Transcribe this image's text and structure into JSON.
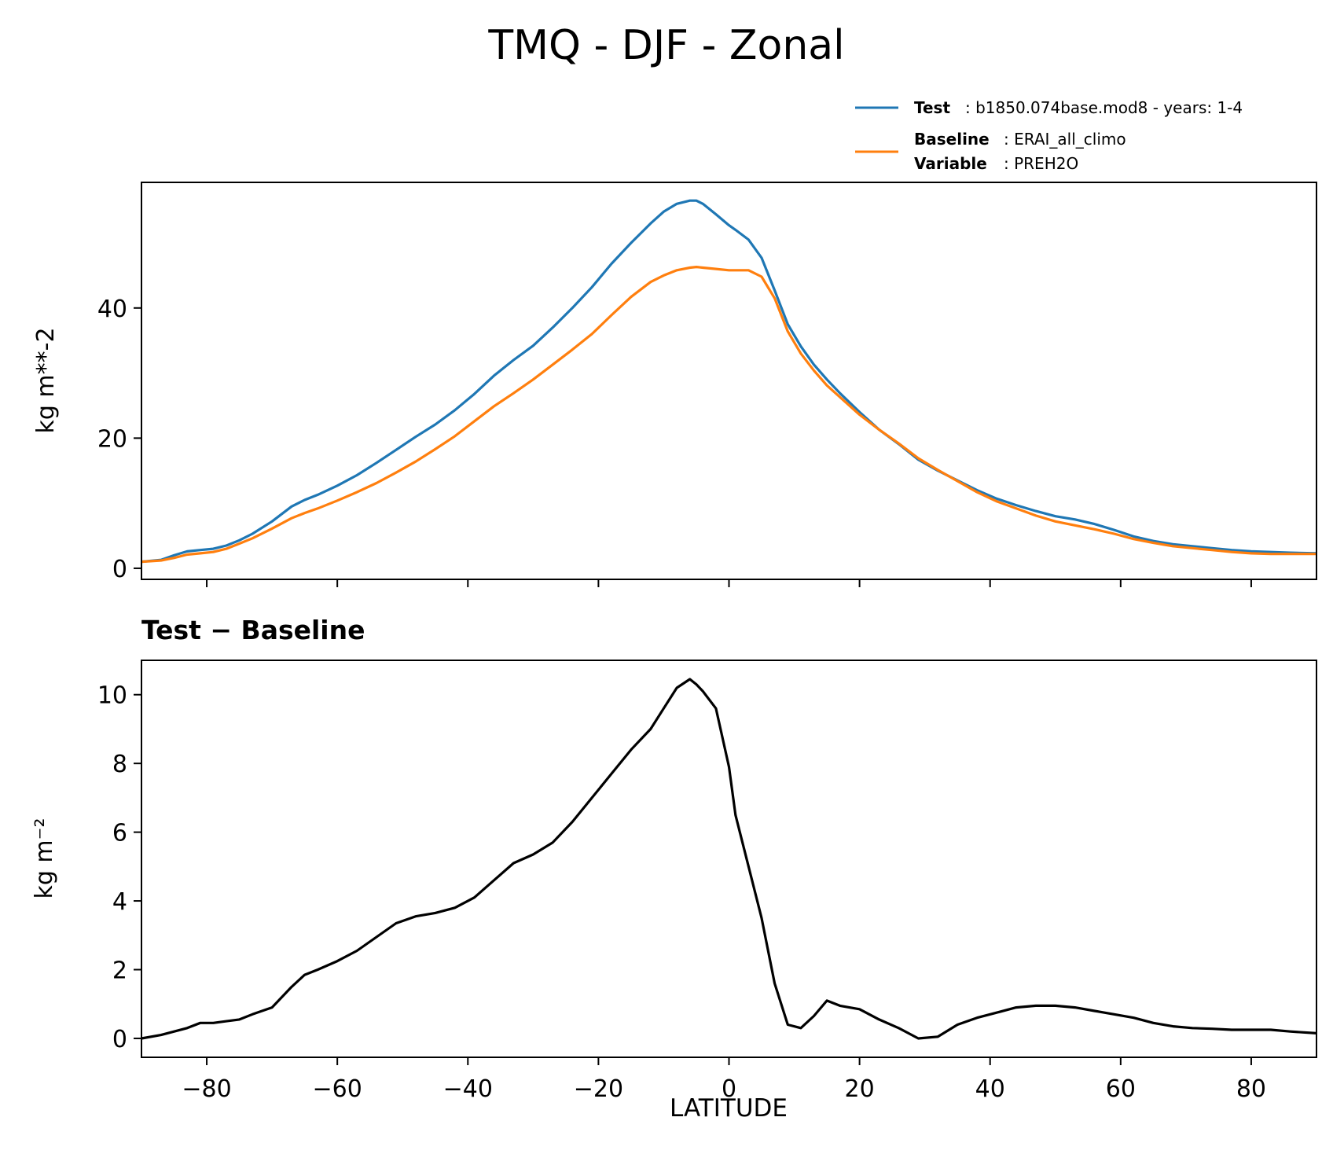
{
  "title": "TMQ - DJF - Zonal",
  "legend": {
    "test_key": "Test",
    "test_value": ": b1850.074base.mod8 - years: 1-4",
    "baseline_key": "Baseline",
    "baseline_value": ": ERAI_all_climo",
    "variable_key": "Variable",
    "variable_value": ": PREH2O"
  },
  "colors": {
    "test": "#1f77b4",
    "baseline": "#ff7f0e",
    "diff": "#000000"
  },
  "chart_data": [
    {
      "type": "line",
      "panel": "top",
      "ylabel": "kg m**-2",
      "xlim": [
        -90,
        90
      ],
      "ylim": [
        -1.7,
        59.3
      ],
      "yticks": [
        0,
        20,
        40
      ],
      "xticks": [
        -80,
        -60,
        -40,
        -20,
        0,
        20,
        40,
        60,
        80
      ],
      "legend_position": "above right",
      "series": [
        {
          "name": "Test",
          "x": [
            -90,
            -87,
            -85,
            -83,
            -81,
            -79,
            -77,
            -75,
            -73,
            -70,
            -67,
            -65,
            -63,
            -60,
            -57,
            -54,
            -51,
            -48,
            -45,
            -42,
            -39,
            -36,
            -33,
            -30,
            -27,
            -24,
            -21,
            -18,
            -15,
            -12,
            -10,
            -8,
            -6,
            -5,
            -4,
            -2,
            0,
            1,
            3,
            5,
            7,
            9,
            11,
            13,
            15,
            17,
            20,
            23,
            26,
            29,
            32,
            35,
            38,
            41,
            44,
            47,
            50,
            53,
            56,
            59,
            62,
            65,
            68,
            71,
            74,
            77,
            80,
            83,
            86,
            90
          ],
          "y": [
            1.0,
            1.3,
            2.0,
            2.6,
            2.8,
            3.0,
            3.5,
            4.3,
            5.3,
            7.2,
            9.5,
            10.5,
            11.3,
            12.7,
            14.3,
            16.2,
            18.2,
            20.2,
            22.1,
            24.3,
            26.8,
            29.6,
            32.0,
            34.2,
            37.0,
            40.0,
            43.2,
            46.8,
            50.0,
            53.0,
            54.8,
            56.0,
            56.5,
            56.5,
            56.0,
            54.4,
            52.7,
            52.0,
            50.5,
            47.7,
            42.7,
            37.5,
            34.1,
            31.3,
            29.0,
            26.9,
            24.0,
            21.3,
            19.1,
            16.7,
            15.0,
            13.5,
            12.0,
            10.7,
            9.7,
            8.8,
            8.0,
            7.5,
            6.8,
            5.9,
            4.9,
            4.2,
            3.7,
            3.4,
            3.1,
            2.8,
            2.6,
            2.5,
            2.4,
            2.3
          ]
        },
        {
          "name": "Baseline",
          "x": [
            -90,
            -87,
            -85,
            -83,
            -81,
            -79,
            -77,
            -75,
            -73,
            -70,
            -67,
            -65,
            -63,
            -60,
            -57,
            -54,
            -51,
            -48,
            -45,
            -42,
            -39,
            -36,
            -33,
            -30,
            -27,
            -24,
            -21,
            -18,
            -15,
            -12,
            -10,
            -8,
            -6,
            -5,
            -4,
            -2,
            0,
            1,
            3,
            5,
            7,
            9,
            11,
            13,
            15,
            17,
            20,
            23,
            26,
            29,
            32,
            35,
            38,
            41,
            44,
            47,
            50,
            53,
            56,
            59,
            62,
            65,
            68,
            71,
            74,
            77,
            80,
            83,
            86,
            90
          ],
          "y": [
            1.0,
            1.2,
            1.6,
            2.1,
            2.3,
            2.5,
            3.0,
            3.8,
            4.6,
            6.1,
            7.7,
            8.5,
            9.2,
            10.4,
            11.7,
            13.1,
            14.7,
            16.4,
            18.3,
            20.3,
            22.6,
            24.9,
            26.9,
            29.0,
            31.3,
            33.6,
            36.0,
            38.9,
            41.7,
            44.0,
            45.0,
            45.8,
            46.2,
            46.3,
            46.2,
            46.0,
            45.8,
            45.8,
            45.8,
            44.8,
            41.5,
            36.4,
            33.0,
            30.4,
            28.1,
            26.3,
            23.6,
            21.3,
            19.2,
            16.9,
            15.1,
            13.4,
            11.7,
            10.3,
            9.2,
            8.1,
            7.2,
            6.6,
            6.0,
            5.3,
            4.5,
            3.9,
            3.4,
            3.1,
            2.8,
            2.5,
            2.3,
            2.2,
            2.2,
            2.2
          ]
        }
      ]
    },
    {
      "type": "line",
      "panel": "bottom",
      "title": "Test − Baseline",
      "xlabel": "LATITUDE",
      "ylabel": "kg m⁻²",
      "xlim": [
        -90,
        90
      ],
      "ylim": [
        -0.55,
        11.0
      ],
      "yticks": [
        0,
        2,
        4,
        6,
        8,
        10
      ],
      "xticks": [
        -80,
        -60,
        -40,
        -20,
        0,
        20,
        40,
        60,
        80
      ],
      "xtick_labels": [
        "−80",
        "−60",
        "−40",
        "−20",
        "0",
        "20",
        "40",
        "60",
        "80"
      ],
      "ytick_labels": [
        "0",
        "2",
        "4",
        "6",
        "8",
        "10"
      ],
      "series": [
        {
          "name": "Test − Baseline",
          "x": [
            -90,
            -87,
            -85,
            -83,
            -81,
            -79,
            -77,
            -75,
            -73,
            -70,
            -67,
            -65,
            -63,
            -60,
            -57,
            -54,
            -51,
            -48,
            -45,
            -42,
            -39,
            -36,
            -33,
            -30,
            -27,
            -24,
            -21,
            -18,
            -15,
            -12,
            -10,
            -8,
            -6,
            -5,
            -4,
            -2,
            0,
            1,
            3,
            5,
            7,
            9,
            11,
            13,
            15,
            17,
            20,
            23,
            26,
            29,
            32,
            35,
            38,
            41,
            44,
            47,
            50,
            53,
            56,
            59,
            62,
            65,
            68,
            71,
            74,
            77,
            80,
            83,
            86,
            90
          ],
          "y": [
            0.0,
            0.1,
            0.2,
            0.3,
            0.45,
            0.45,
            0.5,
            0.55,
            0.7,
            0.9,
            1.5,
            1.85,
            2.0,
            2.25,
            2.55,
            2.95,
            3.35,
            3.55,
            3.65,
            3.8,
            4.1,
            4.6,
            5.1,
            5.35,
            5.7,
            6.3,
            7.0,
            7.7,
            8.4,
            9.0,
            9.6,
            10.2,
            10.45,
            10.3,
            10.1,
            9.6,
            7.9,
            6.5,
            5.0,
            3.5,
            1.6,
            0.4,
            0.3,
            0.65,
            1.1,
            0.95,
            0.85,
            0.55,
            0.3,
            0.0,
            0.05,
            0.4,
            0.6,
            0.75,
            0.9,
            0.95,
            0.95,
            0.9,
            0.8,
            0.7,
            0.6,
            0.45,
            0.35,
            0.3,
            0.28,
            0.25,
            0.25,
            0.25,
            0.2,
            0.15
          ]
        }
      ]
    }
  ]
}
